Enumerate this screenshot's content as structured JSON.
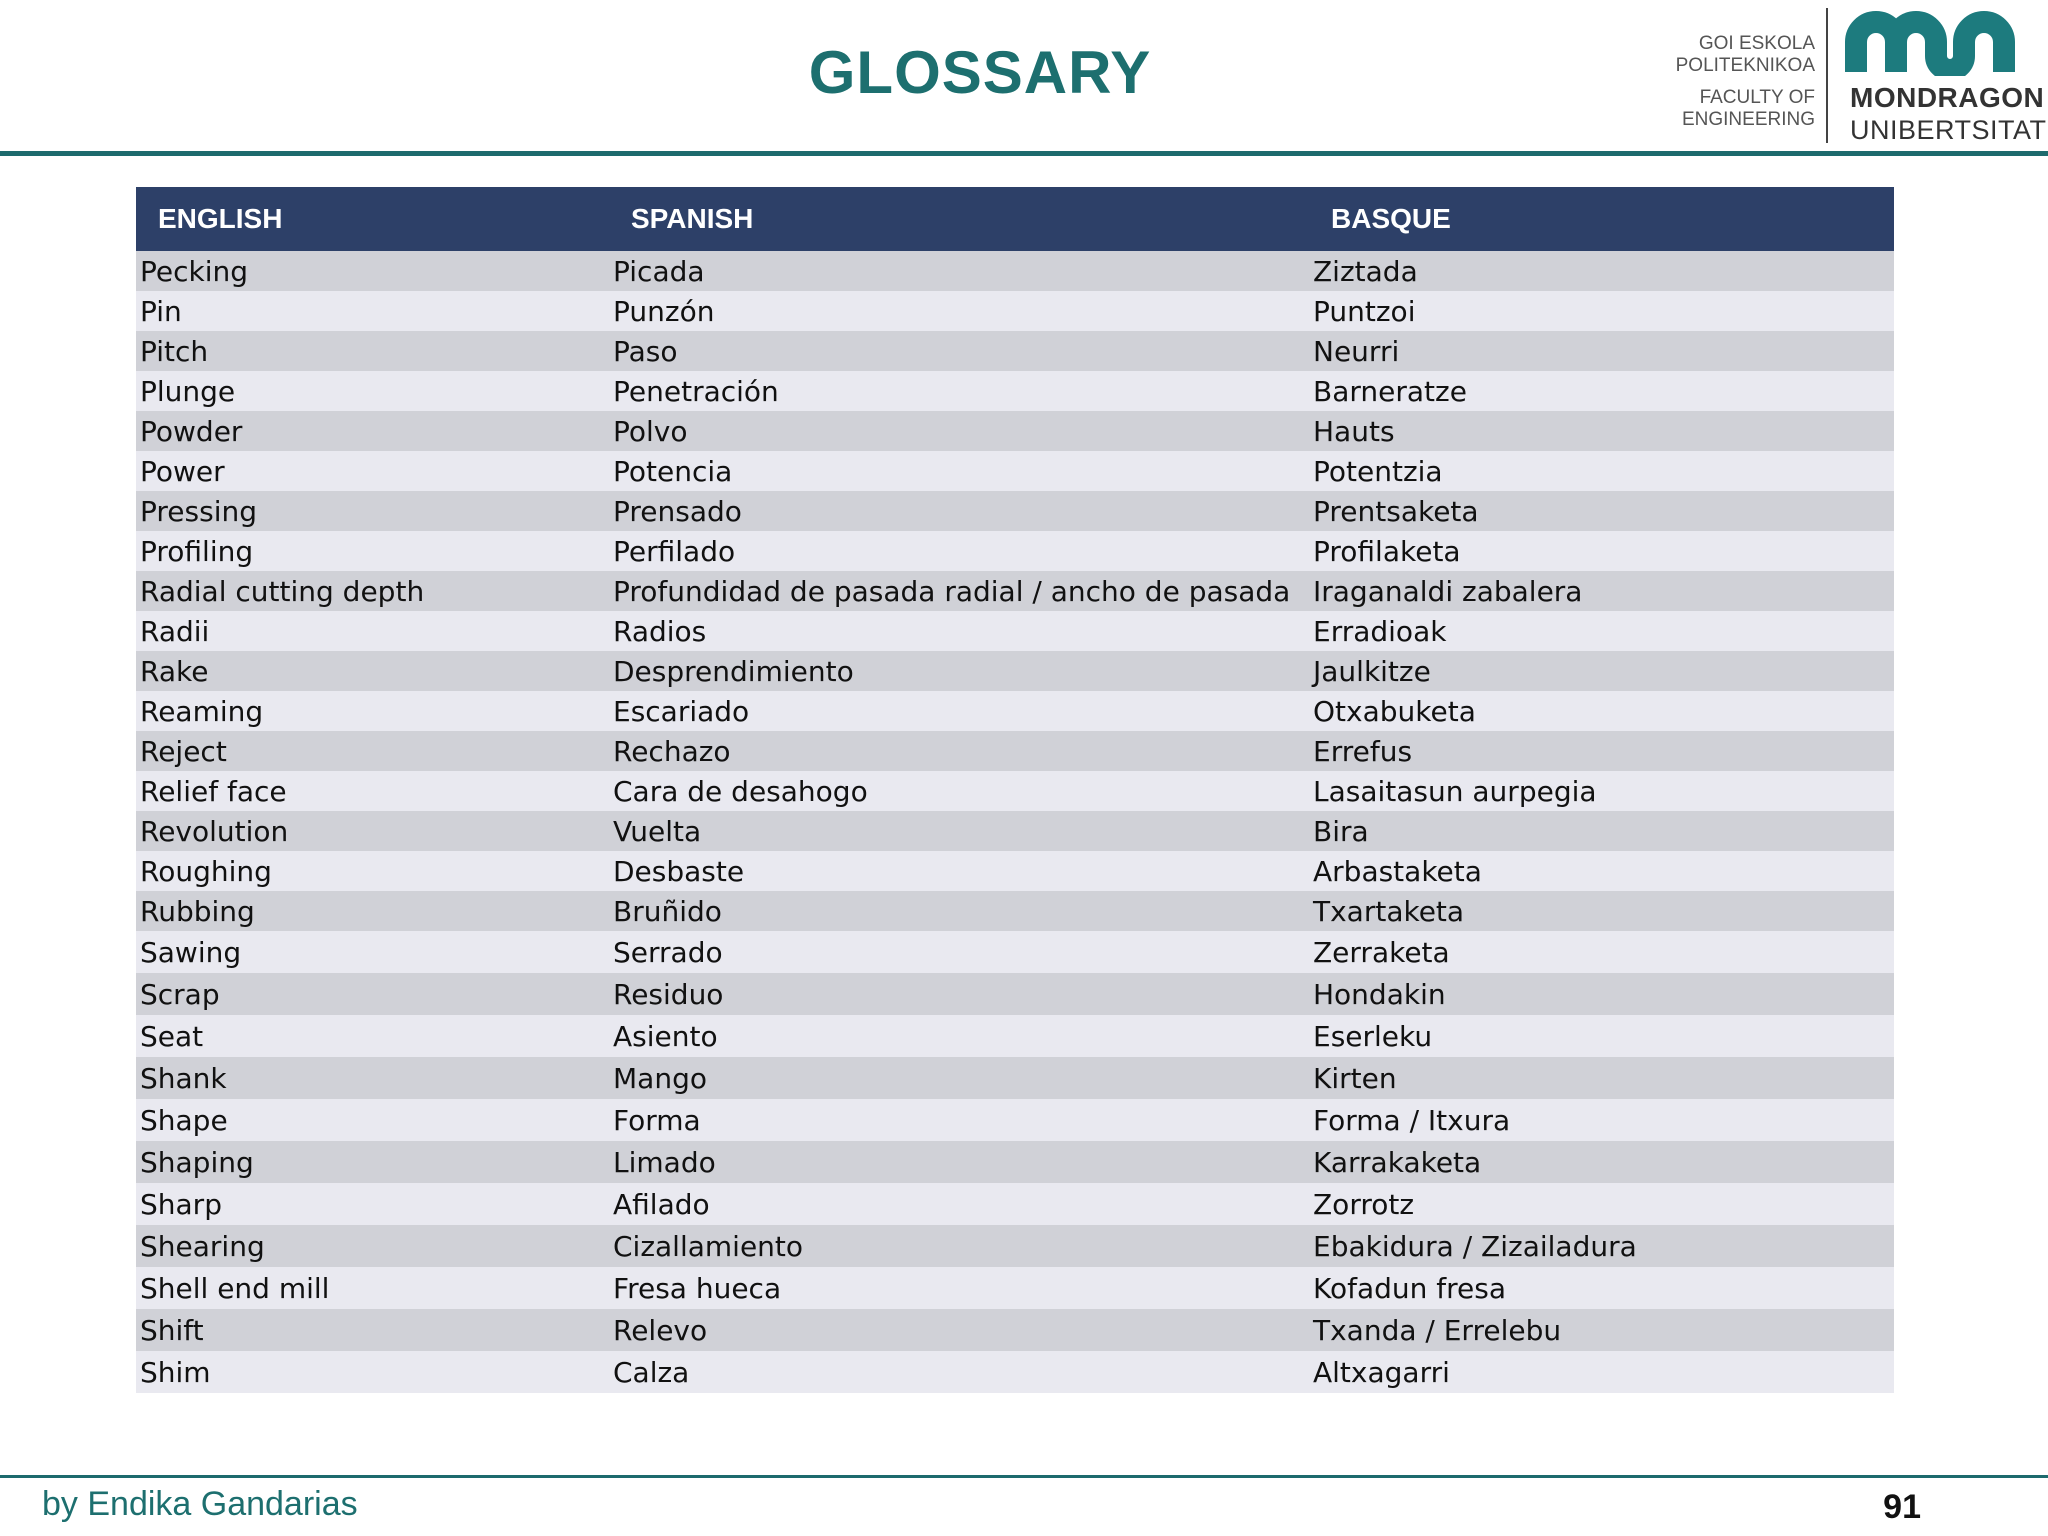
{
  "title": "GLOSSARY",
  "logo": {
    "left_lines": [
      "GOI ESKOLA",
      "POLITEKNIKOA",
      "FACULTY OF",
      "ENGINEERING"
    ],
    "right_line1": "MONDRAGON",
    "right_line2": "UNIBERTSITATEA",
    "mark_color": "#1d7b7e"
  },
  "colors": {
    "accent": "#1d6f6f",
    "header_bg": "#2d4068",
    "row_odd": "#d0d1d7",
    "row_even": "#e9e9f0"
  },
  "table": {
    "headers": [
      "ENGLISH",
      "SPANISH",
      "BASQUE"
    ],
    "rows": [
      [
        "Pecking",
        "Picada",
        "Ziztada"
      ],
      [
        "Pin",
        "Punzón",
        "Puntzoi"
      ],
      [
        "Pitch",
        "Paso",
        "Neurri"
      ],
      [
        "Plunge",
        "Penetración",
        "Barneratze"
      ],
      [
        "Powder",
        "Polvo",
        "Hauts"
      ],
      [
        "Power",
        "Potencia",
        "Potentzia"
      ],
      [
        "Pressing",
        "Prensado",
        "Prentsaketa"
      ],
      [
        "Profiling",
        "Perfilado",
        "Profilaketa"
      ],
      [
        "Radial cutting depth",
        "Profundidad de pasada radial / ancho de pasada",
        "Iraganaldi zabalera"
      ],
      [
        "Radii",
        "Radios",
        "Erradioak"
      ],
      [
        "Rake",
        "Desprendimiento",
        "Jaulkitze"
      ],
      [
        "Reaming",
        "Escariado",
        "Otxabuketa"
      ],
      [
        "Reject",
        "Rechazo",
        "Errefus"
      ],
      [
        "Relief face",
        "Cara de desahogo",
        "Lasaitasun aurpegia"
      ],
      [
        "Revolution",
        "Vuelta",
        "Bira"
      ],
      [
        "Roughing",
        "Desbaste",
        "Arbastaketa"
      ],
      [
        "Rubbing",
        "Bruñido",
        "Txartaketa"
      ],
      [
        "Sawing",
        "Serrado",
        "Zerraketa"
      ],
      [
        "Scrap",
        "Residuo",
        "Hondakin"
      ],
      [
        "Seat",
        "Asiento",
        "Eserleku"
      ],
      [
        "Shank",
        "Mango",
        "Kirten"
      ],
      [
        "Shape",
        "Forma",
        "Forma / Itxura"
      ],
      [
        "Shaping",
        "Limado",
        "Karrakaketa"
      ],
      [
        "Sharp",
        "Afilado",
        "Zorrotz"
      ],
      [
        "Shearing",
        "Cizallamiento",
        "Ebakidura / Zizailadura"
      ],
      [
        "Shell end mill",
        "Fresa hueca",
        "Kofadun fresa"
      ],
      [
        "Shift",
        "Relevo",
        "Txanda / Errelebu"
      ],
      [
        "Shim",
        "Calza",
        "Altxagarri"
      ]
    ]
  },
  "footer": {
    "author": "by Endika Gandarias",
    "page_number": "91"
  }
}
